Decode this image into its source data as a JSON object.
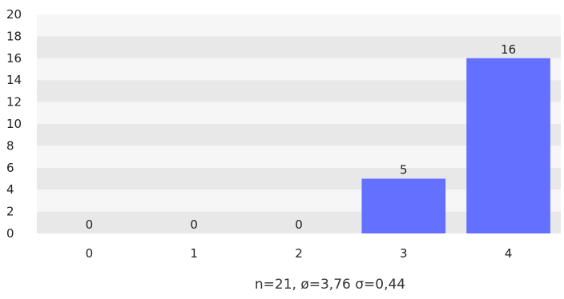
{
  "chart_data": {
    "type": "bar",
    "categories": [
      "0",
      "1",
      "2",
      "3",
      "4"
    ],
    "values": [
      0,
      0,
      0,
      5,
      16
    ],
    "ylim": [
      0,
      20
    ],
    "yticks": [
      0,
      2,
      4,
      6,
      8,
      10,
      12,
      14,
      16,
      18,
      20
    ],
    "grid": "alternating horizontal bands",
    "bar_color": "#6470ff",
    "band_colors": [
      "#e8e8e8",
      "#f6f6f6"
    ],
    "stats_text": "n=21, ø=3,76 σ=0,44"
  }
}
